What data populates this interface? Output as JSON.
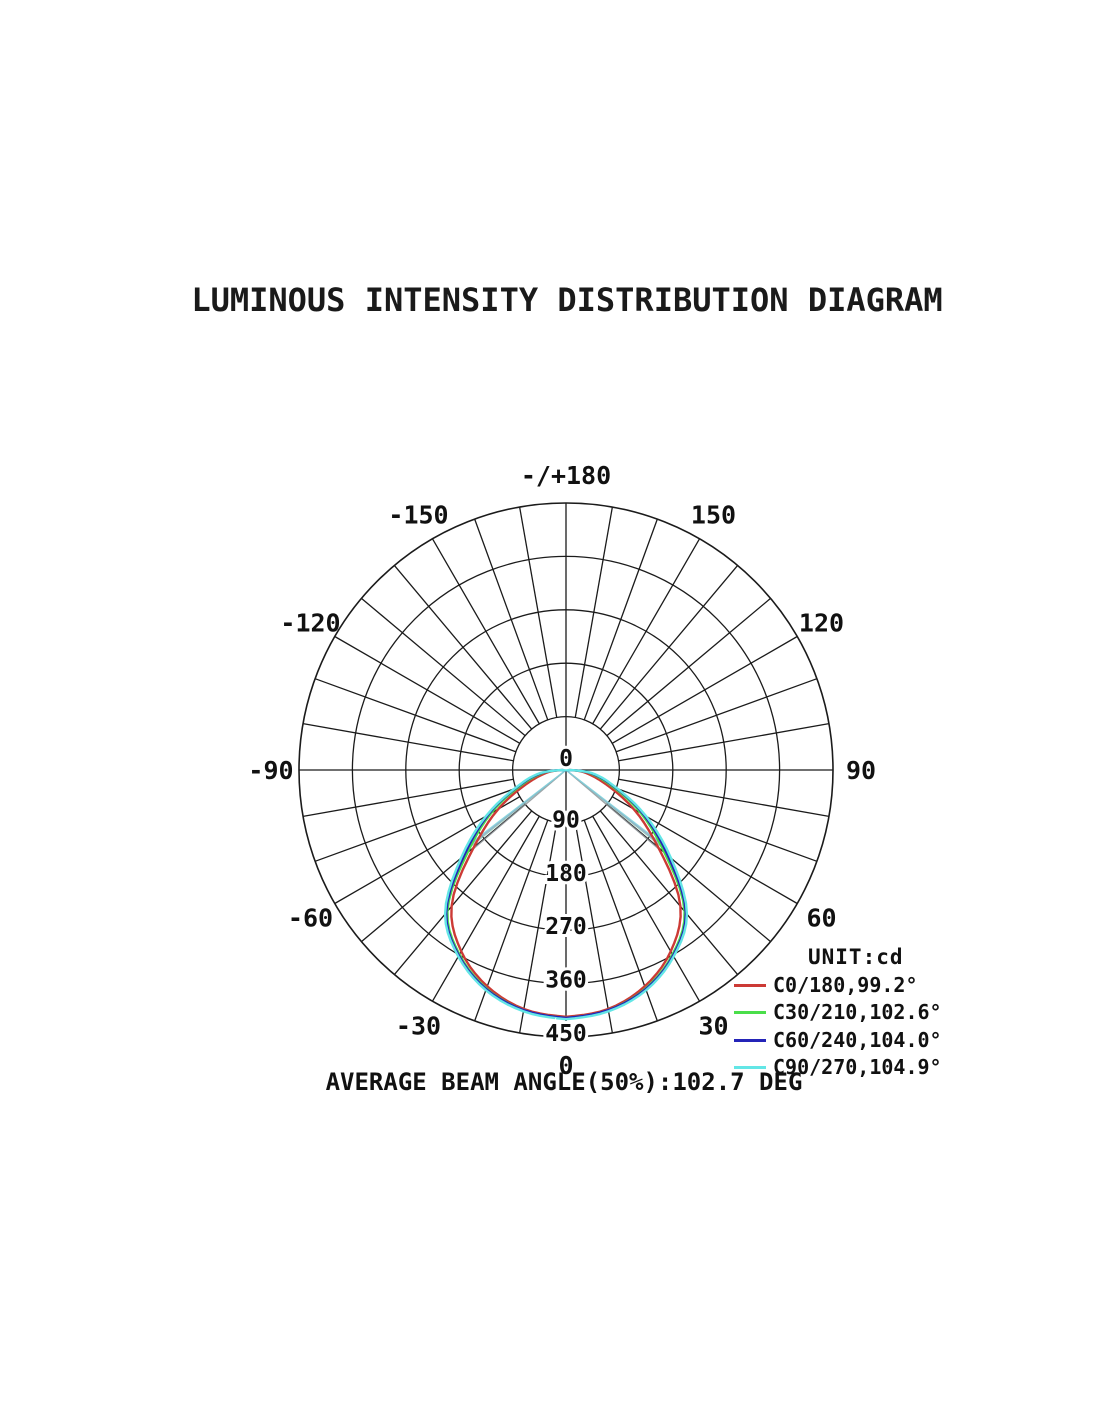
{
  "title": "LUMINOUS INTENSITY DISTRIBUTION DIAGRAM",
  "footer": "AVERAGE BEAM ANGLE(50%):102.7 DEG",
  "legend_unit_label": "UNIT:cd",
  "chart_data": {
    "type": "polar",
    "title": "LUMINOUS INTENSITY DISTRIBUTION DIAGRAM",
    "unit": "cd",
    "grid_color": "#1b1b1b",
    "angle_axis": {
      "spoke_step_deg": 10,
      "label_step_deg": 30,
      "labels": [
        {
          "text": "-/+180",
          "deg": 180
        },
        {
          "text": "150",
          "deg": 150
        },
        {
          "text": "120",
          "deg": 120
        },
        {
          "text": "90",
          "deg": 90
        },
        {
          "text": "60",
          "deg": 60
        },
        {
          "text": "30",
          "deg": 30
        },
        {
          "text": "0",
          "deg": 0
        },
        {
          "text": "-30",
          "deg": -30
        },
        {
          "text": "-60",
          "deg": -60
        },
        {
          "text": "-90",
          "deg": -90
        },
        {
          "text": "-120",
          "deg": -120
        },
        {
          "text": "-150",
          "deg": -150
        }
      ]
    },
    "radial_axis": {
      "ticks": [
        0,
        90,
        180,
        270,
        360,
        450
      ],
      "max": 450
    },
    "series": [
      {
        "name": "C0/180",
        "beam_angle_deg": 99.2,
        "color": "#cc3a35",
        "ray_color": "#8e9499",
        "points": [
          {
            "deg": 0,
            "cd": 416
          },
          {
            "deg": 10,
            "cd": 409
          },
          {
            "deg": 20,
            "cd": 388
          },
          {
            "deg": 30,
            "cd": 353
          },
          {
            "deg": 40,
            "cd": 300
          },
          {
            "deg": 50,
            "cd": 203
          },
          {
            "deg": 60,
            "cd": 132
          },
          {
            "deg": 70,
            "cd": 73
          },
          {
            "deg": 80,
            "cd": 38
          },
          {
            "deg": 85,
            "cd": 25
          },
          {
            "deg": 90,
            "cd": 0
          }
        ]
      },
      {
        "name": "C30/210",
        "beam_angle_deg": 102.6,
        "color": "#4ade4a",
        "ray_color": "#86c2b4",
        "points": [
          {
            "deg": 0,
            "cd": 418
          },
          {
            "deg": 10,
            "cd": 411
          },
          {
            "deg": 20,
            "cd": 392
          },
          {
            "deg": 30,
            "cd": 359
          },
          {
            "deg": 40,
            "cd": 311
          },
          {
            "deg": 50,
            "cd": 217
          },
          {
            "deg": 60,
            "cd": 146
          },
          {
            "deg": 70,
            "cd": 86
          },
          {
            "deg": 80,
            "cd": 48
          },
          {
            "deg": 85,
            "cd": 32
          },
          {
            "deg": 90,
            "cd": 0
          }
        ]
      },
      {
        "name": "C60/240",
        "beam_angle_deg": 104.0,
        "color": "#2424b8",
        "ray_color": "#8b96c4",
        "points": [
          {
            "deg": 0,
            "cd": 418
          },
          {
            "deg": 10,
            "cd": 411
          },
          {
            "deg": 20,
            "cd": 393
          },
          {
            "deg": 30,
            "cd": 361
          },
          {
            "deg": 40,
            "cd": 314
          },
          {
            "deg": 50,
            "cd": 224
          },
          {
            "deg": 60,
            "cd": 152
          },
          {
            "deg": 70,
            "cd": 91
          },
          {
            "deg": 80,
            "cd": 52
          },
          {
            "deg": 85,
            "cd": 34
          },
          {
            "deg": 90,
            "cd": 0
          }
        ]
      },
      {
        "name": "C90/270",
        "beam_angle_deg": 104.9,
        "color": "#63e6e6",
        "ray_color": "#82d6da",
        "points": [
          {
            "deg": 0,
            "cd": 420
          },
          {
            "deg": 10,
            "cd": 413
          },
          {
            "deg": 20,
            "cd": 395
          },
          {
            "deg": 30,
            "cd": 363
          },
          {
            "deg": 40,
            "cd": 317
          },
          {
            "deg": 50,
            "cd": 231
          },
          {
            "deg": 60,
            "cd": 156
          },
          {
            "deg": 70,
            "cd": 93
          },
          {
            "deg": 80,
            "cd": 55
          },
          {
            "deg": 85,
            "cd": 36
          },
          {
            "deg": 90,
            "cd": 0
          }
        ]
      }
    ],
    "legend": [
      {
        "label": "C0/180,99.2°",
        "color": "#cc3a35"
      },
      {
        "label": "C30/210,102.6°",
        "color": "#4ade4a"
      },
      {
        "label": "C60/240,104.0°",
        "color": "#2424b8"
      },
      {
        "label": "C90/270,104.9°",
        "color": "#63e6e6"
      }
    ],
    "average_beam_angle_50pct_deg": 102.7,
    "legend_position": "right-bottom",
    "grid": true
  }
}
